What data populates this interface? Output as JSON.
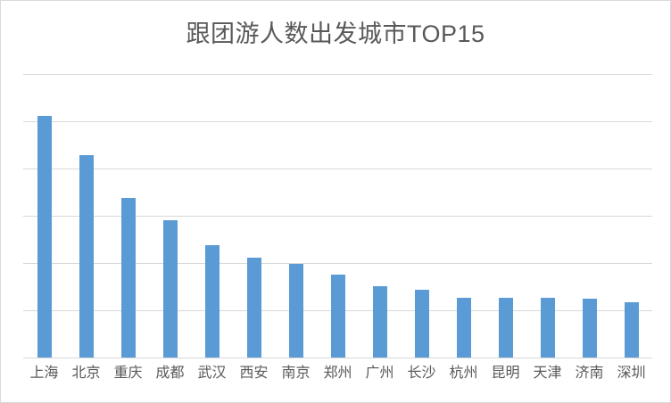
{
  "title": "跟团游人数出发城市TOP15",
  "colors": {
    "bar": "#5b9bd5",
    "gridline": "#d9d9d9",
    "frame_border": "#d9d9d9",
    "title_text": "#595959",
    "axis_text": "#595959",
    "background": "#ffffff"
  },
  "chart_data": {
    "type": "bar",
    "title": "跟团游人数出发城市TOP15",
    "categories": [
      "上海",
      "北京",
      "重庆",
      "成都",
      "武汉",
      "西安",
      "南京",
      "郑州",
      "广州",
      "长沙",
      "杭州",
      "昆明",
      "天津",
      "济南",
      "深圳"
    ],
    "values": [
      5.11,
      4.28,
      3.38,
      2.91,
      2.38,
      2.11,
      1.98,
      1.75,
      1.51,
      1.43,
      1.26,
      1.26,
      1.26,
      1.25,
      1.17
    ],
    "xlabel": "",
    "ylabel": "",
    "ylim": [
      0,
      6
    ],
    "gridline_interval": 1,
    "gridline_count": 7,
    "y_axis_tick_labels_visible": false,
    "grid": "horizontal",
    "legend": "none",
    "bar_color": "#5b9bd5"
  }
}
